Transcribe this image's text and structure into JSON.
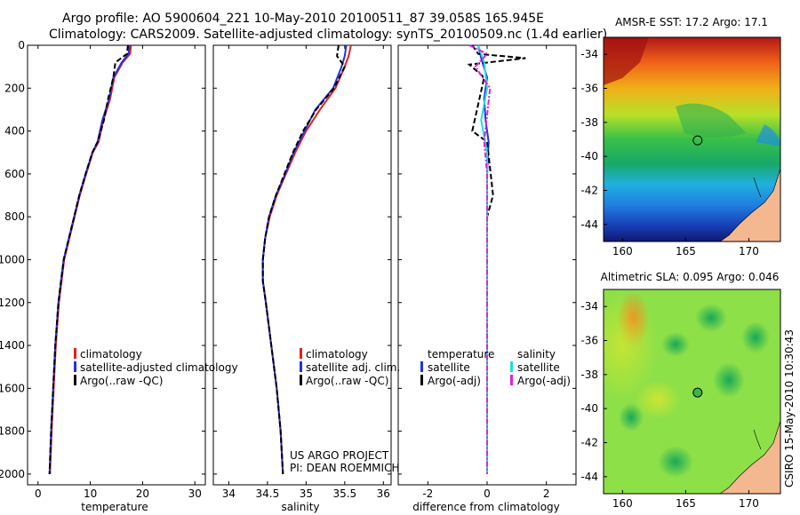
{
  "title": {
    "line1": "Argo profile: AO 5900604_221 10-May-2010 20100511_87 39.058S 165.945E",
    "line2": "Climatology: CARS2009. Satellite-adjusted climatology: synTS_20100509.nc (1.4d earlier)"
  },
  "colors": {
    "climatology": "#dd2222",
    "satellite": "#2233dd",
    "argo": "#000000",
    "salinity_satellite": "#22dddd",
    "salinity_argo": "#dd22dd"
  },
  "chart_data": [
    {
      "type": "line",
      "name": "temperature-profile",
      "xlabel": "temperature",
      "ylabel": "",
      "xlim": [
        -2,
        32
      ],
      "ylim": [
        2050,
        0
      ],
      "xticks": [
        0,
        10,
        20,
        30
      ],
      "yticks": [
        0,
        200,
        400,
        600,
        800,
        1000,
        1200,
        1400,
        1600,
        1800,
        2000
      ],
      "legend": [
        "climatology",
        "satellite-adjusted climatology",
        "Argo(..raw -QC)"
      ],
      "legend_position": "lower-right",
      "series": [
        {
          "name": "climatology",
          "style": "solid",
          "color": "climatology",
          "x": [
            17.8,
            17.6,
            16.2,
            14.6,
            13.8,
            12.5,
            11.6,
            10.5,
            9.2,
            8.0,
            7.0,
            6.0,
            5.0,
            4.0,
            3.4,
            3.0,
            2.6,
            2.3
          ],
          "y": [
            0,
            40,
            80,
            150,
            250,
            350,
            450,
            500,
            600,
            700,
            800,
            900,
            1000,
            1200,
            1400,
            1600,
            1800,
            2000
          ]
        },
        {
          "name": "satellite-adjusted climatology",
          "style": "solid",
          "color": "satellite",
          "x": [
            17.5,
            17.3,
            16.0,
            14.4,
            13.6,
            12.3,
            11.4,
            10.4,
            9.1,
            7.9,
            6.9,
            5.9,
            4.9,
            3.9,
            3.3,
            2.9,
            2.5,
            2.2
          ],
          "y": [
            0,
            40,
            80,
            150,
            250,
            350,
            450,
            500,
            600,
            700,
            800,
            900,
            1000,
            1200,
            1400,
            1600,
            1800,
            2000
          ]
        },
        {
          "name": "Argo(..raw -QC)",
          "style": "dashed",
          "color": "argo",
          "x": [
            17.2,
            17.0,
            14.8,
            14.4,
            13.4,
            12.6,
            11.4,
            10.4,
            9.1,
            7.9,
            6.9,
            5.9,
            4.9,
            3.9,
            3.3,
            2.9,
            2.5,
            2.2
          ],
          "y": [
            0,
            40,
            80,
            150,
            250,
            350,
            450,
            500,
            600,
            700,
            800,
            900,
            1000,
            1200,
            1400,
            1600,
            1800,
            2000
          ]
        }
      ]
    },
    {
      "type": "line",
      "name": "salinity-profile",
      "xlabel": "salinity",
      "ylabel": "",
      "xlim": [
        33.8,
        36.1
      ],
      "ylim": [
        2050,
        0
      ],
      "xticks": [
        34,
        34.5,
        35,
        35.5,
        36
      ],
      "yticks": [
        0,
        200,
        400,
        600,
        800,
        1000,
        1200,
        1400,
        1600,
        1800,
        2000
      ],
      "legend": [
        "climatology",
        "satellite adj. clim.",
        "Argo(..raw -QC)"
      ],
      "legend_position": "lower-right",
      "annotation": [
        "US ARGO PROJECT",
        "PI: DEAN ROEMMICH"
      ],
      "series": [
        {
          "name": "climatology",
          "style": "solid",
          "color": "climatology",
          "x": [
            35.58,
            35.55,
            35.5,
            35.38,
            35.18,
            35.0,
            34.86,
            34.74,
            34.62,
            34.53,
            34.47,
            34.44,
            34.44,
            34.48,
            34.55,
            34.62,
            34.67,
            34.7
          ],
          "y": [
            0,
            50,
            100,
            200,
            300,
            400,
            500,
            600,
            700,
            800,
            900,
            1000,
            1100,
            1200,
            1400,
            1600,
            1800,
            2000
          ]
        },
        {
          "name": "satellite adj. clim.",
          "style": "solid",
          "color": "satellite",
          "x": [
            35.52,
            35.5,
            35.46,
            35.35,
            35.12,
            34.98,
            34.84,
            34.73,
            34.61,
            34.52,
            34.47,
            34.44,
            34.44,
            34.48,
            34.55,
            34.62,
            34.67,
            34.7
          ],
          "y": [
            0,
            50,
            100,
            200,
            300,
            400,
            500,
            600,
            700,
            800,
            900,
            1000,
            1100,
            1200,
            1400,
            1600,
            1800,
            2000
          ]
        },
        {
          "name": "Argo(..raw -QC)",
          "style": "dashed",
          "color": "argo",
          "x": [
            35.42,
            35.4,
            35.5,
            35.36,
            35.13,
            34.96,
            34.83,
            34.72,
            34.61,
            34.52,
            34.47,
            34.44,
            34.44,
            34.48,
            34.55,
            34.62,
            34.67,
            34.7
          ],
          "y": [
            0,
            50,
            100,
            200,
            300,
            400,
            500,
            600,
            700,
            800,
            900,
            1000,
            1100,
            1200,
            1400,
            1600,
            1800,
            2000
          ]
        }
      ]
    },
    {
      "type": "line",
      "name": "difference-profile",
      "xlabel": "difference from climatology",
      "ylabel": "",
      "xlim": [
        -3,
        3
      ],
      "ylim": [
        2050,
        0
      ],
      "xticks": [
        -2,
        0,
        2
      ],
      "yticks": [
        0,
        200,
        400,
        600,
        800,
        1000,
        1200,
        1400,
        1600,
        1800,
        2000
      ],
      "legend_headers": [
        "temperature",
        "salinity"
      ],
      "legend": [
        "satellite",
        "Argo(-adj)",
        "satellite",
        "Argo(-adj)"
      ],
      "legend_position": "lower-center",
      "series": [
        {
          "name": "temperature satellite",
          "style": "solid",
          "color": "satellite",
          "x": [
            -0.3,
            -0.2,
            0.0,
            -0.1,
            -0.05,
            0.05,
            0.0,
            0.0,
            0.0,
            0.0
          ],
          "y": [
            0,
            60,
            150,
            250,
            350,
            450,
            600,
            1000,
            1500,
            2000
          ]
        },
        {
          "name": "temperature Argo(-adj)",
          "style": "dashed",
          "color": "argo",
          "x": [
            -0.5,
            -0.3,
            1.3,
            -0.6,
            -0.1,
            -0.5,
            0.0,
            0.2,
            0.0,
            0.0,
            0.0
          ],
          "y": [
            0,
            40,
            60,
            90,
            150,
            400,
            450,
            700,
            800,
            1000,
            2000
          ]
        },
        {
          "name": "salinity satellite",
          "style": "solid",
          "color": "salinity_satellite",
          "x": [
            -0.3,
            -0.1,
            0.0,
            -0.2,
            0.0,
            0.0,
            0.0,
            0.0
          ],
          "y": [
            0,
            80,
            200,
            350,
            500,
            1200,
            1600,
            2000
          ]
        },
        {
          "name": "salinity Argo(-adj)",
          "style": "dashdot",
          "color": "salinity_argo",
          "x": [
            -0.6,
            0.0,
            -0.4,
            0.1,
            -0.1,
            0.0,
            0.0
          ],
          "y": [
            0,
            40,
            100,
            200,
            450,
            600,
            2000
          ]
        }
      ]
    },
    {
      "type": "heatmap",
      "name": "sst-map",
      "title": "AMSR-E SST: 17.2 Argo: 17.1",
      "xlim": [
        158.5,
        172.5
      ],
      "ylim": [
        -45,
        -33
      ],
      "xticks": [
        160,
        165,
        170
      ],
      "yticks": [
        -34,
        -36,
        -38,
        -40,
        -42,
        -44
      ],
      "marker": {
        "lon": 165.945,
        "lat": -39.058
      },
      "sst_value": 17.2,
      "argo_value": 17.1
    },
    {
      "type": "heatmap",
      "name": "sla-map",
      "title": "Altimetric SLA: 0.095 Argo: 0.046",
      "xlim": [
        158.5,
        172.5
      ],
      "ylim": [
        -45,
        -33
      ],
      "xticks": [
        160,
        165,
        170
      ],
      "yticks": [
        -34,
        -36,
        -38,
        -40,
        -42,
        -44
      ],
      "marker": {
        "lon": 165.945,
        "lat": -39.058
      },
      "sla_value": 0.095,
      "argo_value": 0.046
    }
  ],
  "footer": {
    "stamp": "CSIRO 15-May-2010 10:30:43"
  }
}
